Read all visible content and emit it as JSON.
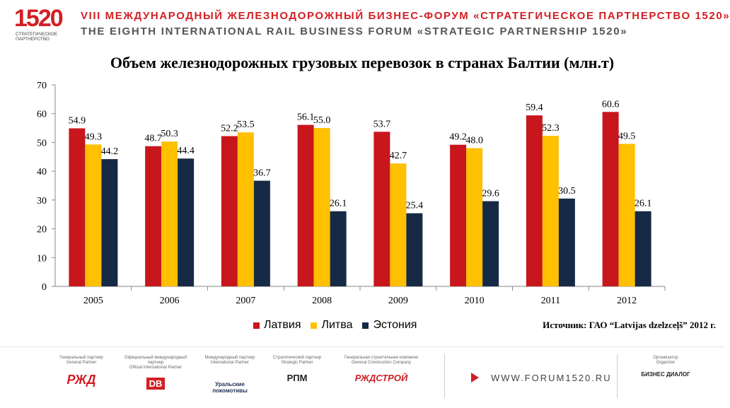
{
  "header": {
    "logo_text": "1520",
    "logo_sub": "СТРАТЕГИЧЕСКОЕ ПАРТНЕРСТВО",
    "line1": "VIII МЕЖДУНАРОДНЫЙ ЖЕЛЕЗНОДОРОЖНЫЙ БИЗНЕС-ФОРУМ «СТРАТЕГИЧЕСКОЕ ПАРТНЕРСТВО 1520»",
    "line2": "THE EIGHTH INTERNATIONAL RAIL BUSINESS FORUM «STRATEGIC PARTNERSHIP 1520»"
  },
  "colors": {
    "brand_red": "#d21f24",
    "latvia": "#c8161d",
    "lithuania": "#ffc000",
    "estonia": "#162a45"
  },
  "chart_data": {
    "type": "bar",
    "title": "Объем железнодорожных грузовых перевозок в странах Балтии (млн.т)",
    "categories": [
      "2005",
      "2006",
      "2007",
      "2008",
      "2009",
      "2010",
      "2011",
      "2012"
    ],
    "series": [
      {
        "name": "Латвия",
        "values": [
          54.9,
          48.7,
          52.2,
          56.1,
          53.7,
          49.2,
          59.4,
          60.6
        ]
      },
      {
        "name": "Литва",
        "values": [
          49.3,
          50.3,
          53.5,
          55.0,
          42.7,
          48.0,
          52.3,
          49.5
        ]
      },
      {
        "name": "Эстония",
        "values": [
          44.2,
          44.4,
          36.7,
          26.1,
          25.4,
          29.6,
          30.5,
          26.1
        ]
      }
    ],
    "ylim": [
      0,
      70
    ],
    "yticks": [
      0,
      10,
      20,
      30,
      40,
      50,
      60,
      70
    ],
    "grid": false,
    "legend": "bottom"
  },
  "source": "Источник: ГАО “Latvijas dzelzceļš” 2012 г.",
  "footer": {
    "partners": [
      {
        "label": "Генеральный партнер\nGeneral Partner",
        "logo": "РЖД"
      },
      {
        "label": "Официальный международный партнер\nOfficial International Partner",
        "logo": "DB"
      },
      {
        "label": "Международный партнер\nInternational Partner",
        "logo": "Уральские локомотивы"
      },
      {
        "label": "Стратегический партнер\nStrategic Partner",
        "logo": "РПМ"
      },
      {
        "label": "Генеральная строительная компания\nGeneral Construction Company",
        "logo": "РЖДСТРОЙ"
      }
    ],
    "url": "WWW.FORUM1520.RU",
    "organizer_label": "Организатор\nOrganizer",
    "organizer_logo": "БИЗНЕС ДИАЛОГ"
  }
}
